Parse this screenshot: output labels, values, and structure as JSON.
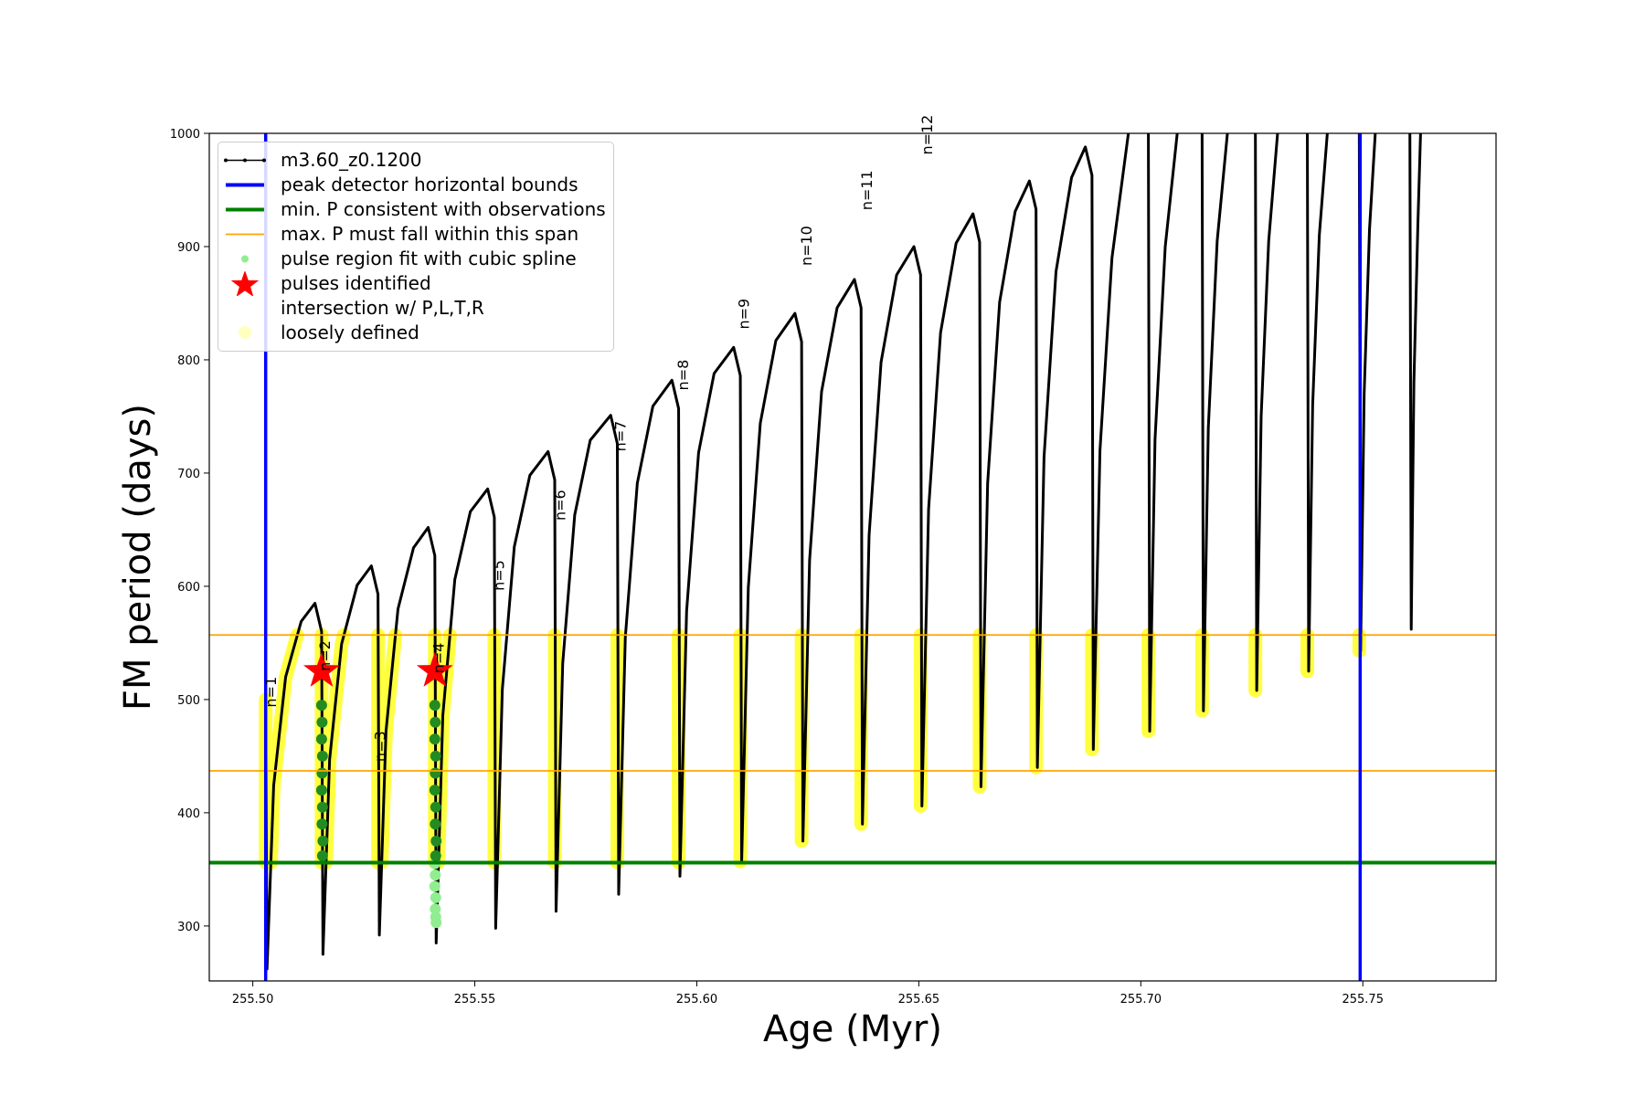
{
  "chart_data": {
    "type": "line",
    "xlabel": "Age (Myr)",
    "ylabel": "FM period (days)",
    "xlim": [
      255.4902,
      255.78
    ],
    "ylim": [
      251.5,
      1000
    ],
    "xticks": [
      {
        "value": 255.5,
        "label": "255.50"
      },
      {
        "value": 255.55,
        "label": "255.55"
      },
      {
        "value": 255.6,
        "label": "255.60"
      },
      {
        "value": 255.65,
        "label": "255.65"
      },
      {
        "value": 255.7,
        "label": "255.70"
      },
      {
        "value": 255.75,
        "label": "255.75"
      }
    ],
    "yticks": [
      300,
      400,
      500,
      600,
      700,
      800,
      900,
      1000
    ],
    "legend": "upper left",
    "series": [
      {
        "name": "m3.60_z0.1200",
        "kind": "line",
        "color": "#000000",
        "x": [
          255.5029,
          255.5032,
          255.5047,
          255.5074,
          255.5109,
          255.514,
          255.5155,
          255.5158,
          255.5173,
          255.52,
          255.5235,
          255.5267,
          255.5282,
          255.5285,
          255.53,
          255.5327,
          255.5362,
          255.5395,
          255.541,
          255.5413,
          255.5428,
          255.5455,
          255.549,
          255.5529,
          255.5544,
          255.5547,
          255.5562,
          255.5589,
          255.5624,
          255.5665,
          255.568,
          255.5683,
          255.5698,
          255.5725,
          255.576,
          255.5806,
          255.5821,
          255.5824,
          255.5839,
          255.5866,
          255.5901,
          255.5944,
          255.5959,
          255.5962,
          255.5977,
          255.6004,
          255.6039,
          255.6083,
          255.6098,
          255.6101,
          255.6116,
          255.6143,
          255.6178,
          255.6221,
          255.6236,
          255.6239,
          255.6254,
          255.6281,
          255.6316,
          255.6355,
          255.637,
          255.6373,
          255.6388,
          255.6415,
          255.645,
          255.6489,
          255.6504,
          255.6507,
          255.6522,
          255.6549,
          255.6584,
          255.6622,
          255.6637,
          255.664,
          255.6655,
          255.6682,
          255.6717,
          255.6749,
          255.6764,
          255.6767,
          255.6782,
          255.6809,
          255.6844,
          255.6875,
          255.689,
          255.6893,
          255.6908,
          255.6935,
          255.6972,
          null,
          255.7017,
          255.702,
          255.7032,
          255.7055,
          255.7082,
          null,
          255.7138,
          255.7141,
          255.7152,
          255.7172,
          255.7195,
          null,
          255.7258,
          255.7261,
          255.7271,
          255.7288,
          255.7308,
          null,
          255.7375,
          255.7378,
          255.7387,
          255.7402,
          255.742,
          null,
          255.7492,
          255.7495,
          255.7503,
          255.7515,
          255.7528,
          null,
          255.7606,
          255.7609,
          255.7615,
          255.7624,
          255.763
        ],
        "values": [
          500,
          262,
          424,
          520,
          569,
          585,
          560,
          275,
          447,
          549,
          601,
          618,
          593,
          292,
          472,
          580,
          634,
          652,
          627,
          285,
          486,
          606,
          666,
          686,
          661,
          298,
          509,
          635,
          698,
          719,
          694,
          313,
          532,
          663,
          729,
          751,
          726,
          328,
          555,
          691,
          759,
          782,
          757,
          344,
          578,
          718,
          788,
          811,
          786,
          357,
          599,
          744,
          817,
          841,
          816,
          375,
          623,
          772,
          846,
          871,
          846,
          390,
          645,
          798,
          875,
          900,
          875,
          406,
          668,
          824,
          903,
          929,
          904,
          423,
          691,
          851,
          931,
          958,
          933,
          440,
          714,
          878,
          961,
          988,
          963,
          456,
          720,
          890,
          1000,
          null,
          1000,
          472,
          730,
          900,
          1000,
          null,
          1000,
          490,
          740,
          905,
          1000,
          null,
          1000,
          508,
          750,
          905,
          1000,
          null,
          1000,
          525,
          760,
          910,
          1000,
          null,
          1000,
          543,
          770,
          915,
          1000,
          null,
          1000,
          562,
          780,
          920,
          1000
        ]
      },
      {
        "name": "peak detector horizontal bounds",
        "kind": "vline",
        "color": "#0000ff",
        "values": [
          255.5029,
          255.7494
        ]
      },
      {
        "name": "min. P consistent with observations",
        "kind": "hline",
        "color": "#008000",
        "values": [
          356
        ]
      },
      {
        "name": "max. P must fall within this span",
        "kind": "hline",
        "color": "#ffa500",
        "values": [
          557,
          437
        ]
      },
      {
        "name": "pulse region fit with cubic spline",
        "kind": "scatter",
        "color": "#90ee90",
        "x": [
          255.541,
          255.5411,
          255.541,
          255.5412,
          255.5411,
          255.5412,
          255.5413
        ],
        "values": [
          355,
          345,
          335,
          325,
          315,
          308,
          303
        ]
      },
      {
        "name": "pulses identified",
        "kind": "star",
        "color": "#ff0000",
        "x": [
          255.5155,
          255.541
        ],
        "values": [
          525,
          525
        ]
      },
      {
        "name": "intersection w/ P,L,T,R\nloosely defined",
        "kind": "band",
        "color": "#ffff00",
        "x": [
          255.5041,
          255.5047,
          255.5074,
          255.51,
          null,
          255.5165,
          255.5173,
          255.52,
          255.5205,
          null,
          255.529,
          255.53,
          255.5321,
          null,
          255.5418,
          255.5428,
          255.5444,
          null,
          255.5029,
          255.5029,
          null,
          255.5155,
          255.5155,
          null,
          255.5282,
          255.5282,
          null,
          255.541,
          255.541,
          null,
          255.5544,
          255.5544,
          null,
          255.568,
          255.568,
          null,
          255.5821,
          255.5821,
          null,
          255.5959,
          255.5959,
          null,
          255.6098,
          255.6098,
          null,
          255.6236,
          255.6236,
          null,
          255.637,
          255.637,
          null,
          255.6504,
          255.6504,
          null,
          255.6637,
          255.6637,
          null,
          255.6764,
          255.6764,
          null,
          255.689,
          255.689,
          null,
          255.7017,
          255.7017,
          null,
          255.7138,
          255.7138,
          null,
          255.7258,
          255.7258,
          null,
          255.7375,
          255.7375,
          null,
          255.7492,
          255.7492
        ],
        "values": [
          356,
          424,
          520,
          557,
          null,
          356,
          447,
          549,
          557,
          null,
          356,
          472,
          557,
          null,
          356,
          486,
          557,
          null,
          356,
          500,
          null,
          356,
          557,
          null,
          356,
          557,
          null,
          356,
          557,
          null,
          356,
          557,
          null,
          356,
          557,
          null,
          356,
          557,
          null,
          356,
          557,
          null,
          357,
          557,
          null,
          375,
          557,
          null,
          390,
          557,
          null,
          406,
          557,
          null,
          423,
          557,
          null,
          440,
          557,
          null,
          456,
          557,
          null,
          472,
          557,
          null,
          490,
          557,
          null,
          508,
          557,
          null,
          525,
          557,
          null,
          543,
          557
        ]
      },
      {
        "kind": "scatter",
        "color": "#228b22",
        "x": [
          255.5155,
          255.5156,
          255.5155,
          255.5157,
          255.5156,
          255.5155,
          255.5157,
          255.5156,
          255.5158,
          255.5157,
          255.541,
          255.5411,
          255.541,
          255.5412,
          255.5411,
          255.541,
          255.5412,
          255.5411,
          255.5413,
          255.5412
        ],
        "values": [
          495,
          480,
          465,
          450,
          435,
          420,
          405,
          390,
          375,
          362,
          495,
          480,
          465,
          450,
          435,
          420,
          405,
          390,
          375,
          362
        ]
      }
    ],
    "annotations": [
      {
        "text": "n=1",
        "x": 255.5052,
        "y": 493
      },
      {
        "text": "n=2",
        "x": 255.5174,
        "y": 525
      },
      {
        "text": "n=3",
        "x": 255.5298,
        "y": 445
      },
      {
        "text": "n=4",
        "x": 255.543,
        "y": 523
      },
      {
        "text": "n=5",
        "x": 255.5566,
        "y": 596
      },
      {
        "text": "n=6",
        "x": 255.5704,
        "y": 658
      },
      {
        "text": "n=7",
        "x": 255.584,
        "y": 719
      },
      {
        "text": "n=8",
        "x": 255.5981,
        "y": 773
      },
      {
        "text": "n=9",
        "x": 255.6117,
        "y": 827
      },
      {
        "text": "n=10",
        "x": 255.6258,
        "y": 883
      },
      {
        "text": "n=11",
        "x": 255.6394,
        "y": 932
      },
      {
        "text": "n=12",
        "x": 255.653,
        "y": 981
      }
    ]
  }
}
